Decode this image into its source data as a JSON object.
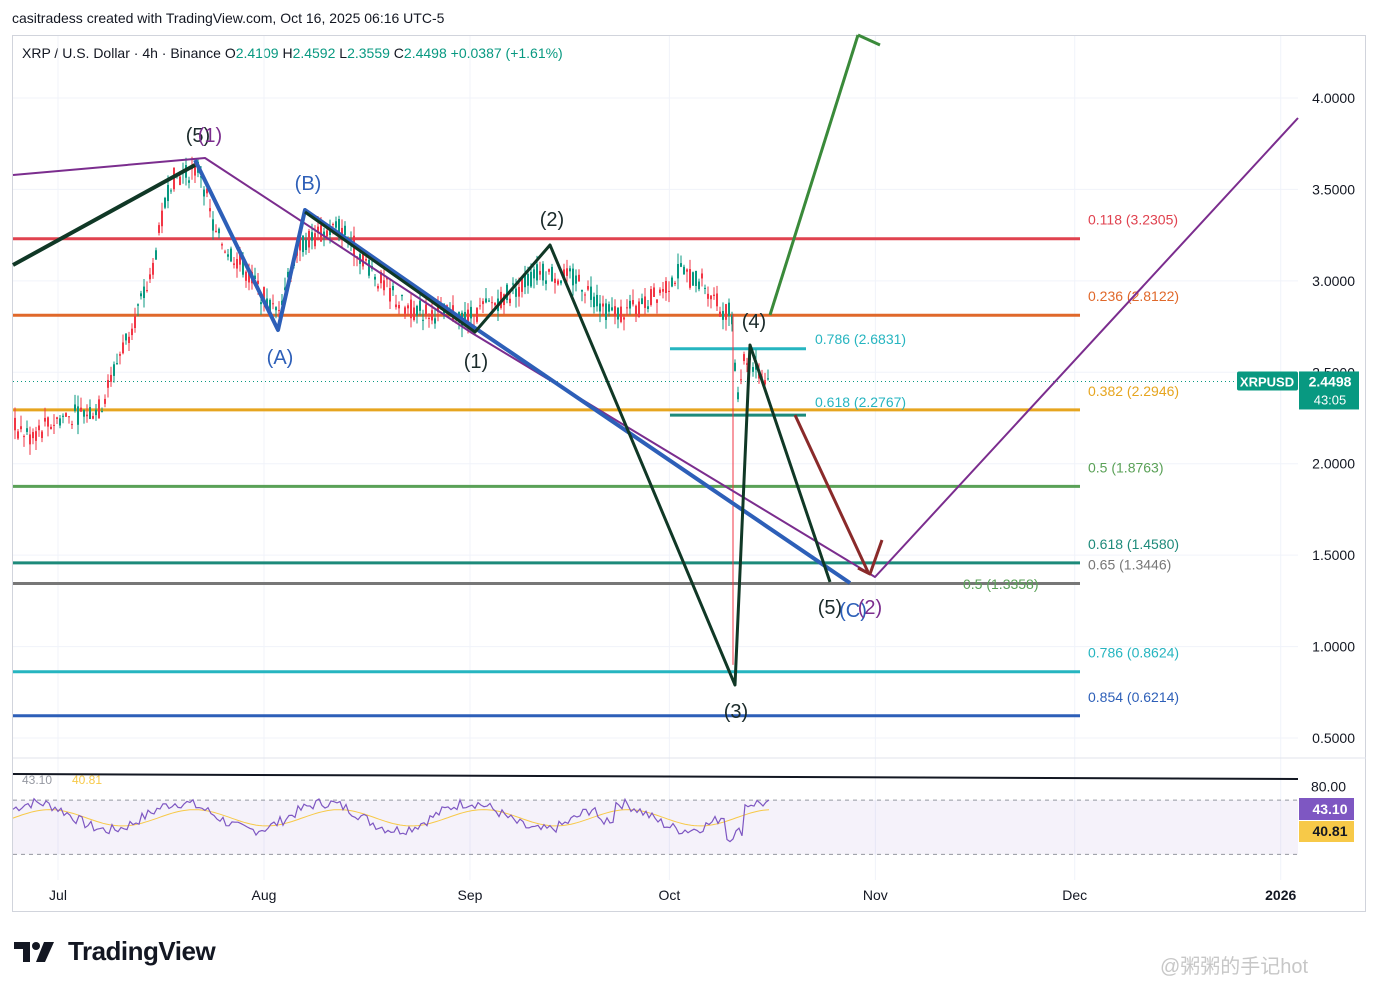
{
  "header": {
    "created_by": "casitradess created with TradingView.com, Oct 16, 2025 06:16 UTC-5"
  },
  "legend": {
    "symbol": "XRP / U.S. Dollar · 4h · Binance",
    "open_label": "O",
    "open": "2.4109",
    "high_label": "H",
    "high": "2.4592",
    "low_label": "L",
    "low": "2.3559",
    "close_label": "C",
    "close": "2.4498",
    "change": "+0.0387 (+1.61%)"
  },
  "branding": {
    "logo_text": "TradingView",
    "watermark": "@粥粥的手记hot"
  },
  "colors": {
    "up": "#089981",
    "down": "#f23645",
    "rsi": "#7e57c2",
    "rsi_ma": "#f7c948",
    "price_tag": "#089981"
  },
  "chart_data": {
    "type": "line",
    "symbol": "XRPUSD",
    "timeframe": "4h",
    "ylim": [
      0.4,
      4.35
    ],
    "y_ticks": [
      "4.0000",
      "3.5000",
      "3.0000",
      "2.5000",
      "2.0000",
      "1.5000",
      "1.0000",
      "0.5000"
    ],
    "x_ticks": [
      "Jul",
      "Aug",
      "Sep",
      "Oct",
      "Nov",
      "Dec",
      "2026"
    ],
    "price_tag": {
      "label": "XRPUSD",
      "price": "2.4498",
      "countdown": "43:05",
      "value": 2.4498
    },
    "fib_levels": [
      {
        "label": "0.118 (3.2305)",
        "value": 3.2305,
        "color": "#e0424f"
      },
      {
        "label": "0.236 (2.8122)",
        "value": 2.8122,
        "color": "#e0682a"
      },
      {
        "label": "0.382 (2.2946)",
        "value": 2.2946,
        "color": "#e6a51f"
      },
      {
        "label": "0.5 (1.8763)",
        "value": 1.8763,
        "color": "#5aa157"
      },
      {
        "label": "0.618 (1.4580)",
        "value": 1.458,
        "color": "#1d8a7a"
      },
      {
        "label": "0.65 (1.3446)",
        "value": 1.3446,
        "color": "#777777"
      },
      {
        "label": "0.786 (0.8624)",
        "value": 0.8624,
        "color": "#26b5c0"
      },
      {
        "label": "0.854 (0.6214)",
        "value": 0.6214,
        "color": "#2d5fb8"
      }
    ],
    "retracement_levels": [
      {
        "label": "0.786 (2.6831)",
        "value": 2.6831,
        "color": "#26b5c0"
      },
      {
        "label": "0.618 (2.2767)",
        "value": 2.2767,
        "color": "#26b5c0"
      },
      {
        "label": "0.5 (1.3358)",
        "value": 1.3358,
        "color": "#5aa157"
      }
    ],
    "wave_labels": [
      {
        "text": "(5)",
        "color": "#1a2a2a"
      },
      {
        "text": "(1)",
        "color": "#7b2d8e"
      },
      {
        "text": "(B)",
        "color": "#2d5fb8"
      },
      {
        "text": "(A)",
        "color": "#2d5fb8"
      },
      {
        "text": "(2)",
        "color": "#1a2a2a"
      },
      {
        "text": "(1)",
        "color": "#1a2a2a"
      },
      {
        "text": "(4)",
        "color": "#1a2a2a"
      },
      {
        "text": "(3)",
        "color": "#1a2a2a"
      },
      {
        "text": "(5)",
        "color": "#1a2a2a"
      },
      {
        "text": "(C)",
        "color": "#2d5fb8"
      },
      {
        "text": "(2)",
        "color": "#7b2d8e"
      }
    ],
    "rsi": {
      "ylim": [
        20,
        90
      ],
      "level_label": "80.00",
      "value": 43.1,
      "value_label": "43.10",
      "ma_value": 40.81,
      "ma_label": "40.81",
      "legend_value": "43.10",
      "legend_ma": "40.81"
    }
  }
}
